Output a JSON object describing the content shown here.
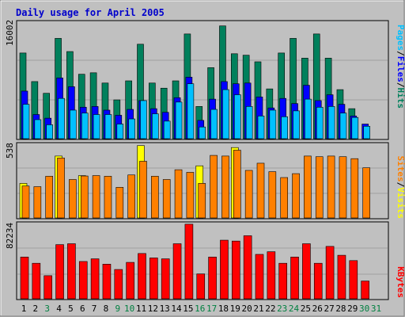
{
  "chart_data": [
    {
      "type": "bar",
      "title": "Daily usage for April 2005",
      "panel": "hits-files-pages",
      "y_max_label": "16002",
      "legend": [
        "Pages",
        "/",
        "Files",
        "/",
        "Hits"
      ],
      "categories": [
        "1",
        "2",
        "3",
        "4",
        "5",
        "6",
        "7",
        "8",
        "9",
        "10",
        "11",
        "12",
        "13",
        "14",
        "15",
        "16",
        "17",
        "18",
        "19",
        "20",
        "21",
        "22",
        "23",
        "24",
        "25",
        "26",
        "27",
        "28",
        "29",
        "30",
        "31"
      ],
      "series": [
        {
          "name": "Hits",
          "values": [
            11700,
            7800,
            6200,
            13700,
            11900,
            8800,
            9000,
            7600,
            5300,
            7900,
            12900,
            7600,
            6900,
            7900,
            14300,
            4400,
            9700,
            15400,
            11600,
            11400,
            10500,
            6800,
            11700,
            13700,
            11000,
            14300,
            11000,
            6700,
            4100,
            0,
            0
          ]
        },
        {
          "name": "Files",
          "values": [
            6500,
            3300,
            2800,
            8300,
            7100,
            4300,
            4400,
            3900,
            3200,
            4000,
            5200,
            4100,
            3600,
            5600,
            8400,
            2500,
            5400,
            7800,
            7500,
            7600,
            5700,
            4200,
            5500,
            4800,
            7300,
            5200,
            6000,
            4700,
            3100,
            2000,
            0
          ]
        },
        {
          "name": "Pages",
          "values": [
            4700,
            2600,
            1900,
            5500,
            3900,
            3500,
            3300,
            3300,
            2000,
            2700,
            5200,
            3400,
            2400,
            5000,
            7500,
            1600,
            4000,
            6700,
            6000,
            4400,
            3100,
            3900,
            3000,
            3800,
            5400,
            4300,
            4400,
            3500,
            2900,
            1700,
            0
          ]
        }
      ],
      "colors": {
        "Hits": "#00805C",
        "Files": "#0000FF",
        "Pages": "#00C0FF"
      }
    },
    {
      "type": "bar",
      "panel": "sites-visits",
      "y_max_label": "538",
      "legend": [
        "Sites",
        "/",
        "Visits"
      ],
      "categories": [
        "1",
        "2",
        "3",
        "4",
        "5",
        "6",
        "7",
        "8",
        "9",
        "10",
        "11",
        "12",
        "13",
        "14",
        "15",
        "16",
        "17",
        "18",
        "19",
        "20",
        "21",
        "22",
        "23",
        "24",
        "25",
        "26",
        "27",
        "28",
        "29",
        "30",
        "31"
      ],
      "series": [
        {
          "name": "Visits",
          "values": [
            265,
            0,
            0,
            475,
            0,
            325,
            0,
            0,
            0,
            0,
            555,
            0,
            0,
            0,
            0,
            400,
            0,
            0,
            540,
            0,
            0,
            0,
            0,
            0,
            0,
            0,
            0,
            0,
            0,
            0,
            0
          ]
        },
        {
          "name": "Sites",
          "values": [
            245,
            240,
            320,
            460,
            295,
            322,
            325,
            320,
            235,
            330,
            435,
            320,
            295,
            370,
            350,
            265,
            480,
            475,
            520,
            365,
            420,
            355,
            310,
            340,
            475,
            470,
            475,
            470,
            455,
            385,
            0
          ]
        }
      ],
      "colors": {
        "Visits": "#FFFF00",
        "Sites": "#FF8000"
      }
    },
    {
      "type": "bar",
      "panel": "kbytes",
      "y_max_label": "82234",
      "legend": [
        "KBytes"
      ],
      "categories": [
        "1",
        "2",
        "3",
        "4",
        "5",
        "6",
        "7",
        "8",
        "9",
        "10",
        "11",
        "12",
        "13",
        "14",
        "15",
        "16",
        "17",
        "18",
        "19",
        "20",
        "21",
        "22",
        "23",
        "24",
        "25",
        "26",
        "27",
        "28",
        "29",
        "30",
        "31"
      ],
      "series": [
        {
          "name": "KBytes",
          "values": [
            47000,
            40000,
            26000,
            61000,
            62000,
            42000,
            45000,
            39000,
            33000,
            41000,
            51000,
            46000,
            45000,
            62000,
            84000,
            28000,
            47000,
            66000,
            65000,
            71000,
            50000,
            53000,
            40000,
            47000,
            62000,
            40000,
            59000,
            49000,
            43000,
            20000,
            0
          ]
        }
      ],
      "colors": {
        "KBytes": "#FF0000"
      }
    }
  ],
  "day_label_colors": [
    "#000000",
    "#000000",
    "#008040",
    "#000000",
    "#000000",
    "#000000",
    "#000000",
    "#000000",
    "#008040",
    "#008040",
    "#000000",
    "#000000",
    "#000000",
    "#000000",
    "#000000",
    "#008040",
    "#008040",
    "#000000",
    "#000000",
    "#000000",
    "#000000",
    "#000000",
    "#008040",
    "#008040",
    "#000000",
    "#000000",
    "#000000",
    "#000000",
    "#000000",
    "#008040",
    "#008040"
  ]
}
